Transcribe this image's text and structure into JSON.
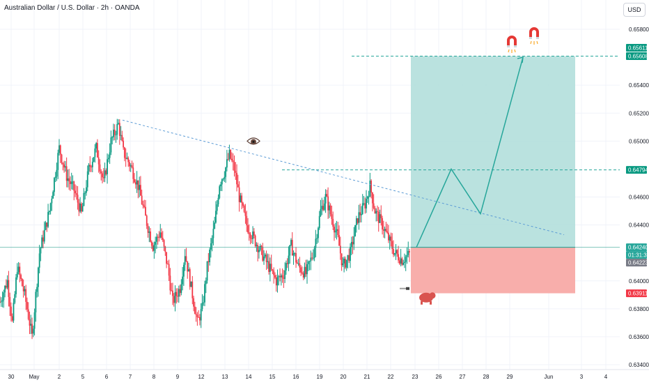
{
  "header": {
    "title": "Australian Dollar / U.S. Dollar · 2h · OANDA",
    "currency_button": "USD"
  },
  "colors": {
    "up": "#089981",
    "down": "#f23645",
    "target_zone": "#b2dfdb",
    "stop_zone": "#f8aaa7",
    "trend_line": "#5b9bd5",
    "projection": "#26a69a",
    "dashed_levels": "#26a69a",
    "price_line": "#2a9d8f",
    "countdown_bg": "#26a69a",
    "prev_close_bg": "#787b86",
    "stop_bg": "#f23645"
  },
  "icons": [
    "eye-icon",
    "magnet-icon",
    "bear-icon",
    "pointer-hand-icon"
  ],
  "chart_data": {
    "type": "candlestick",
    "symbol": "AUDUSD",
    "timeframe": "2h",
    "ylim": [
      0.634,
      0.6596
    ],
    "y_ticks": [
      "0.65800",
      "0.65400",
      "0.65200",
      "0.65000",
      "0.64600",
      "0.64400",
      "0.64000",
      "0.63800",
      "0.63600",
      "0.63400"
    ],
    "x_ticks": [
      "30",
      "May",
      "2",
      "5",
      "6",
      "7",
      "8",
      "9",
      "12",
      "13",
      "14",
      "15",
      "16",
      "19",
      "20",
      "21",
      "22",
      "23",
      "26",
      "27",
      "28",
      "29",
      "Jun",
      "3",
      "4"
    ],
    "price_tags": {
      "target_high": "0.65611",
      "target": "0.65608",
      "mid_level": "0.64794",
      "last_price": "0.64240",
      "countdown": "01:31:37",
      "prev_close": "0.64223",
      "stop": "0.63911"
    },
    "levels": {
      "target": 0.65608,
      "mid": 0.64794,
      "entry": 0.6424,
      "stop": 0.63911
    },
    "trend_line": [
      {
        "date": "May 6",
        "price": 0.6515
      },
      {
        "date": "May 30",
        "price": 0.6433
      }
    ],
    "projection": [
      {
        "date": "May 23",
        "price": 0.6424
      },
      {
        "date": "May 26",
        "price": 0.648
      },
      {
        "date": "May 27",
        "price": 0.6448
      },
      {
        "date": "May 29",
        "price": 0.656
      }
    ],
    "price_path": [
      [
        0,
        0.6385
      ],
      [
        6,
        0.64
      ],
      [
        10,
        0.637
      ],
      [
        14,
        0.641
      ],
      [
        20,
        0.639
      ],
      [
        26,
        0.636
      ],
      [
        32,
        0.642
      ],
      [
        40,
        0.645
      ],
      [
        48,
        0.6495
      ],
      [
        54,
        0.6475
      ],
      [
        60,
        0.6465
      ],
      [
        66,
        0.6448
      ],
      [
        72,
        0.648
      ],
      [
        78,
        0.6495
      ],
      [
        84,
        0.647
      ],
      [
        90,
        0.65
      ],
      [
        96,
        0.6512
      ],
      [
        100,
        0.6492
      ],
      [
        106,
        0.6482
      ],
      [
        112,
        0.6468
      ],
      [
        118,
        0.6445
      ],
      [
        124,
        0.6425
      ],
      [
        130,
        0.6435
      ],
      [
        136,
        0.641
      ],
      [
        140,
        0.6385
      ],
      [
        146,
        0.6395
      ],
      [
        150,
        0.642
      ],
      [
        156,
        0.639
      ],
      [
        160,
        0.637
      ],
      [
        164,
        0.638
      ],
      [
        168,
        0.641
      ],
      [
        174,
        0.644
      ],
      [
        178,
        0.647
      ],
      [
        182,
        0.6478
      ],
      [
        186,
        0.649
      ],
      [
        190,
        0.648
      ],
      [
        194,
        0.646
      ],
      [
        200,
        0.644
      ],
      [
        206,
        0.643
      ],
      [
        212,
        0.642
      ],
      [
        218,
        0.641
      ],
      [
        224,
        0.64
      ],
      [
        230,
        0.6405
      ],
      [
        236,
        0.6425
      ],
      [
        242,
        0.641
      ],
      [
        248,
        0.6405
      ],
      [
        254,
        0.642
      ],
      [
        260,
        0.645
      ],
      [
        264,
        0.646
      ],
      [
        268,
        0.6448
      ],
      [
        274,
        0.643
      ],
      [
        278,
        0.641
      ],
      [
        284,
        0.642
      ],
      [
        290,
        0.6445
      ],
      [
        296,
        0.6455
      ],
      [
        300,
        0.6468
      ],
      [
        304,
        0.645
      ],
      [
        310,
        0.644
      ],
      [
        316,
        0.6428
      ],
      [
        320,
        0.642
      ],
      [
        326,
        0.6415
      ],
      [
        332,
        0.6419
      ]
    ]
  }
}
